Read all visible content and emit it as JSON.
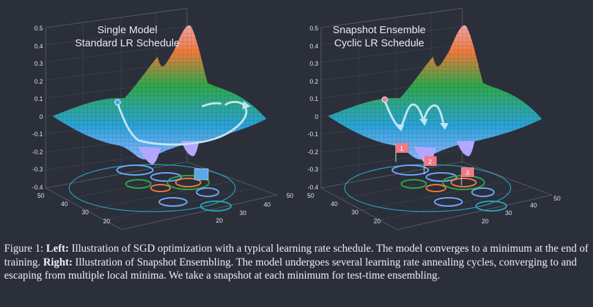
{
  "left_panel": {
    "title_line1": "Single Model",
    "title_line2": "Standard LR Schedule",
    "z_ticks": [
      "0.5",
      "0.4",
      "0.3",
      "0.2",
      "0.1",
      "0",
      "-0.1",
      "-0.2",
      "-0.3",
      "-0.4"
    ],
    "x_ticks": [
      "50",
      "40",
      "30",
      "20"
    ],
    "y_ticks": [
      "50",
      "40",
      "30",
      "20"
    ]
  },
  "right_panel": {
    "title_line1": "Snapshot Ensemble",
    "title_line2": "Cyclic LR Schedule",
    "z_ticks": [
      "0.5",
      "0.4",
      "0.3",
      "0.2",
      "0.1",
      "0",
      "-0.1",
      "-0.2",
      "-0.3",
      "-0.4"
    ],
    "x_ticks": [
      "50",
      "40",
      "30",
      "20"
    ],
    "y_ticks": [
      "50",
      "40",
      "30",
      "20"
    ],
    "flags": [
      "1",
      "2",
      "3"
    ]
  },
  "caption": {
    "figure_label": "Figure 1:",
    "left_label": "Left:",
    "left_text": " Illustration of SGD optimization with a typical learning rate schedule. The model converges to a minimum at the end of training. ",
    "right_label": "Right:",
    "right_text": " Illustration of Snapshot Ensembling. The model undergoes several learning rate annealing cycles, converging to and escaping from multiple local minima. We take a snapshot at each minimum for test-time ensembling."
  },
  "colors": {
    "background": "#2b2f3a",
    "surface_low": "#2aa3d8",
    "surface_mid": "#2fa84a",
    "surface_high": "#ef7a3a",
    "surface_peak": "#f3a2a8",
    "trajectory": "#bfe6f5",
    "flag": "#f07b86",
    "final_marker": "#5aa8e8"
  }
}
